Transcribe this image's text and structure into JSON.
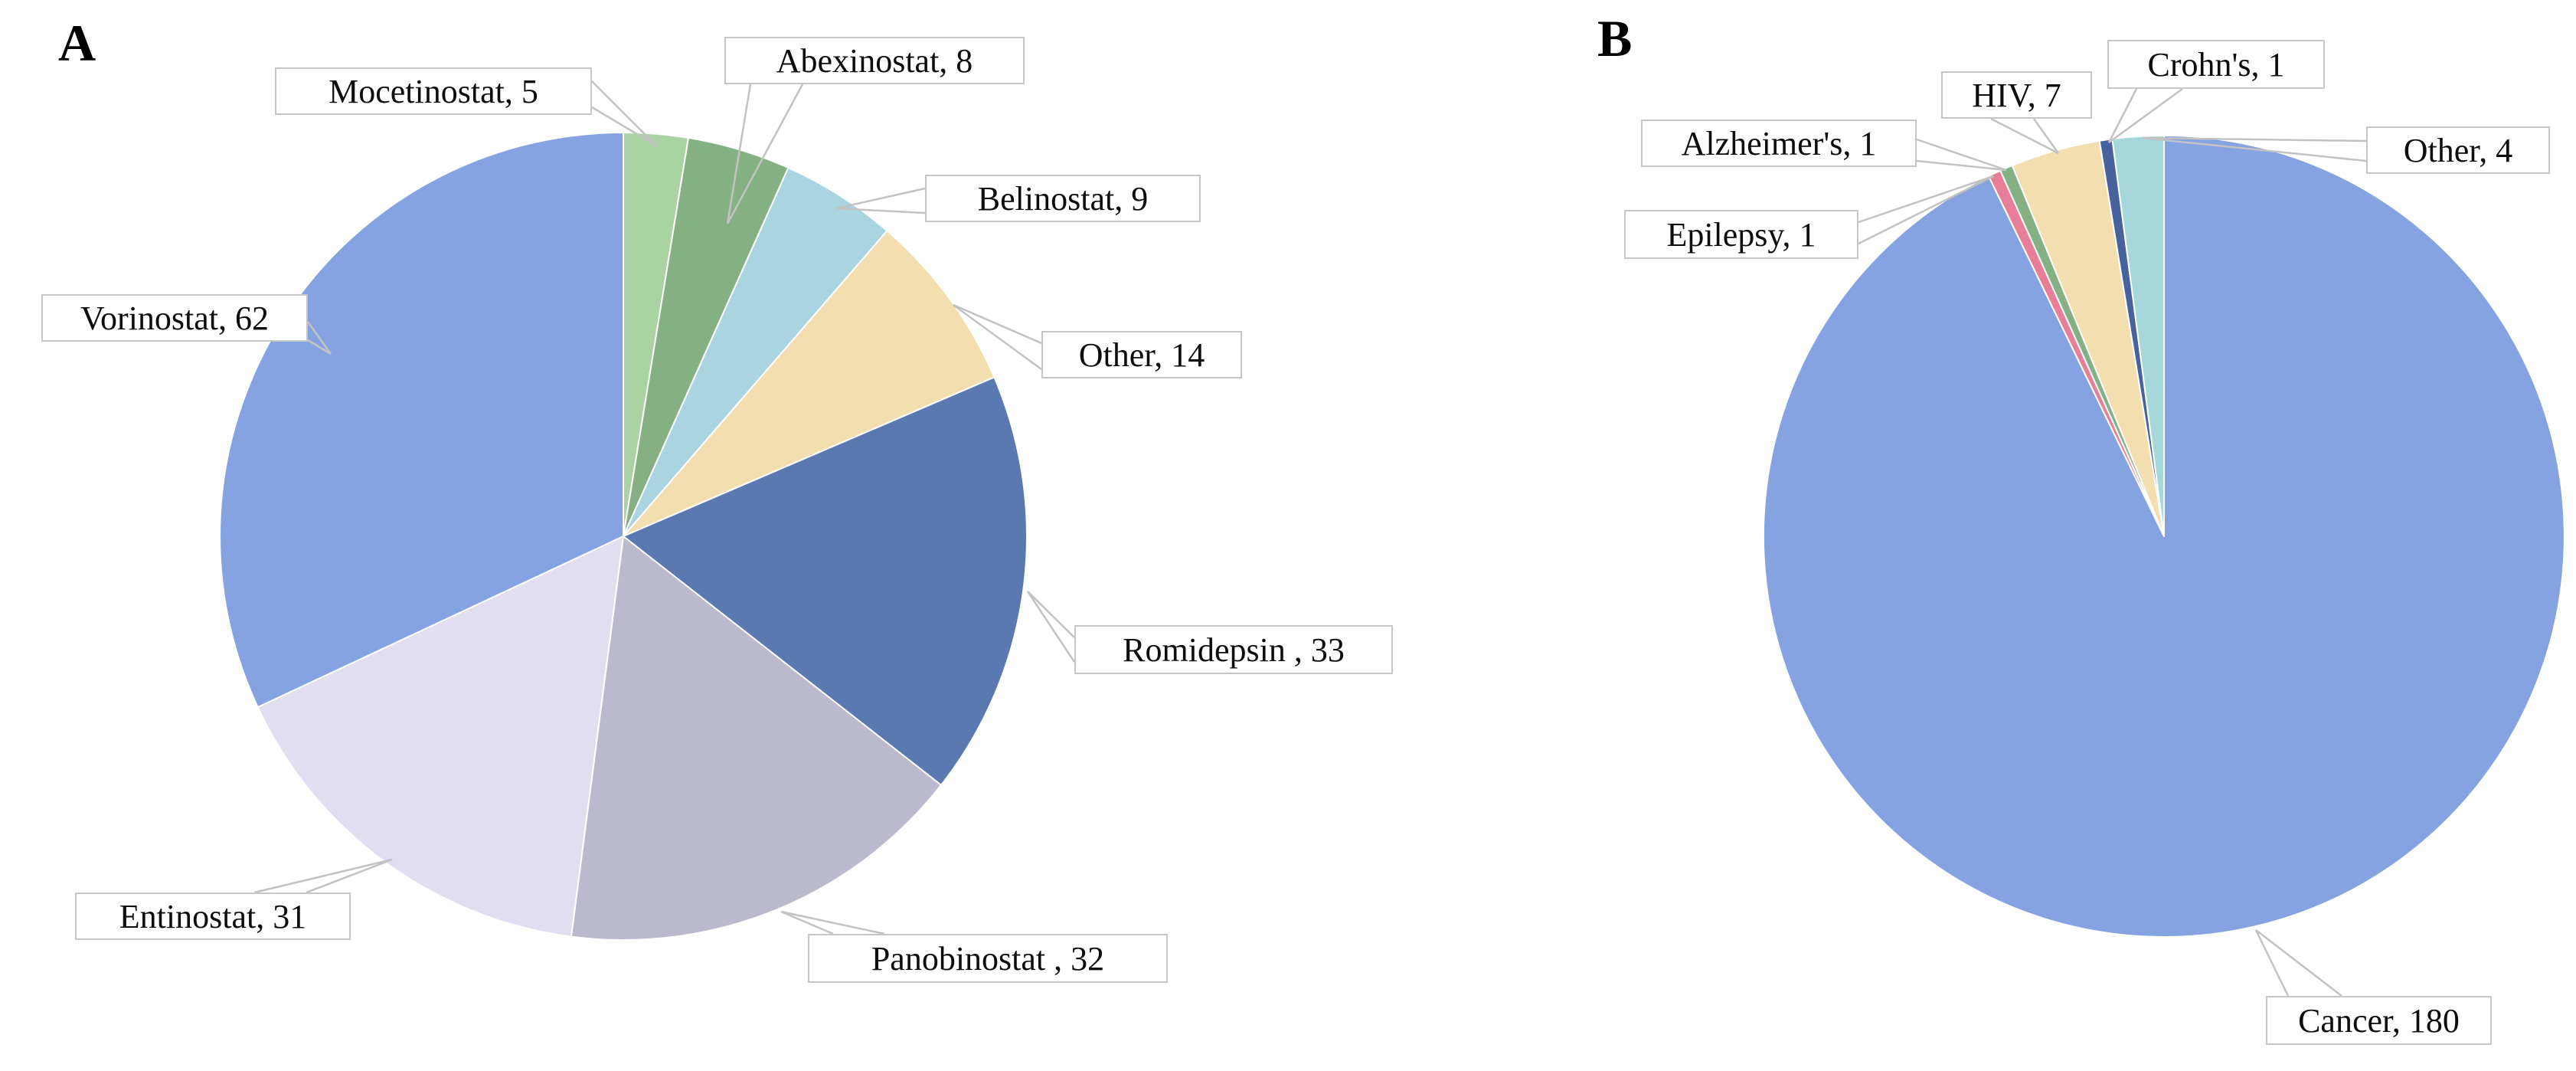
{
  "page": {
    "background": "#ffffff"
  },
  "chart_data": [
    {
      "type": "pie",
      "panel_label": "A",
      "total": 194,
      "start_angle_deg": 0,
      "direction": "clockwise",
      "legend_position": "none",
      "labels_style": "callout-boxes",
      "categories": [
        "Mocetinostat",
        "Abexinostat",
        "Belinostat",
        "Other",
        "Romidepsin",
        "Panobinostat",
        "Entinostat",
        "Vorinostat"
      ],
      "values": [
        5,
        8,
        9,
        14,
        33,
        32,
        31,
        62
      ],
      "slices": [
        {
          "name": "Mocetinostat",
          "value": 5,
          "label": "Mocetinostat, 5",
          "color": "#a9d3a2"
        },
        {
          "name": "Abexinostat",
          "value": 8,
          "label": "Abexinostat, 8",
          "color": "#84b083"
        },
        {
          "name": "Belinostat",
          "value": 9,
          "label": "Belinostat, 9",
          "color": "#a9d4e0"
        },
        {
          "name": "Other",
          "value": 14,
          "label": "Other, 14",
          "color": "#f3deb0"
        },
        {
          "name": "Romidepsin",
          "value": 33,
          "label": "Romidepsin , 33",
          "color": "#5a79b0"
        },
        {
          "name": "Panobinostat",
          "value": 32,
          "label": "Panobinostat , 32",
          "color": "#bbb9ce"
        },
        {
          "name": "Entinostat",
          "value": 31,
          "label": "Entinostat, 31",
          "color": "#e0def0"
        },
        {
          "name": "Vorinostat",
          "value": 62,
          "label": "Vorinostat, 62",
          "color": "#84a3e0"
        }
      ]
    },
    {
      "type": "pie",
      "panel_label": "B",
      "total": 194,
      "start_angle_deg": 0,
      "direction": "clockwise",
      "legend_position": "none",
      "labels_style": "callout-boxes",
      "categories": [
        "Cancer",
        "Epilepsy",
        "Alzheimer's",
        "HIV",
        "Crohn's",
        "Other"
      ],
      "values": [
        180,
        1,
        1,
        7,
        1,
        4
      ],
      "slices": [
        {
          "name": "Cancer",
          "value": 180,
          "label": "Cancer, 180",
          "color": "#84a3e0"
        },
        {
          "name": "Epilepsy",
          "value": 1,
          "label": "Epilepsy, 1",
          "color": "#e87e97"
        },
        {
          "name": "Alzheimer's",
          "value": 1,
          "label": "Alzheimer's, 1",
          "color": "#84b083"
        },
        {
          "name": "HIV",
          "value": 7,
          "label": "HIV, 7",
          "color": "#f3deb0"
        },
        {
          "name": "Crohn's",
          "value": 1,
          "label": "Crohn's, 1",
          "color": "#47639e"
        },
        {
          "name": "Other",
          "value": 4,
          "label": "Other, 4",
          "color": "#a5d7db"
        }
      ]
    }
  ]
}
